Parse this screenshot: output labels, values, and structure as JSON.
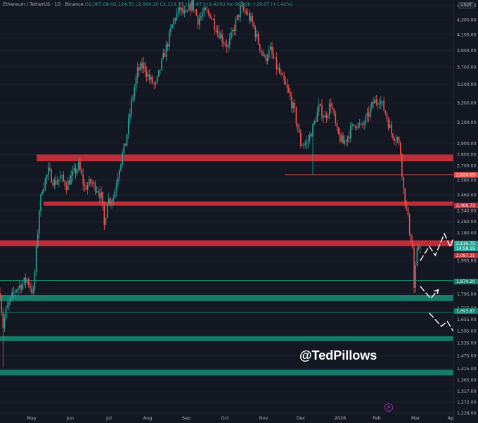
{
  "header": {
    "symbol": "Ethereum / TetherUS · 1D · Binance",
    "ohlc": "O2,087.08  H2,124.55  L2,064.10  C2,116.75  +29.67 (+1.42%)  Vol 99.82K  +29.67 (+1.42%)"
  },
  "currency_label": "USDT",
  "watermark": "@TedPillows",
  "colors": {
    "background": "#131722",
    "up": "#26a69a",
    "down": "#ef5350",
    "resistance_zone": "#c62f3a",
    "support_zone": "#15816f",
    "arrow": "#ffffff"
  },
  "chart_data": {
    "type": "candlestick",
    "title": "Ethereum / TetherUS · 1D · Binance",
    "y_scale": "log",
    "ylim": [
      1228,
      4500
    ],
    "x_labels": [
      "May",
      "Jun",
      "Jul",
      "Aug",
      "Sep",
      "Oct",
      "Nov",
      "Dec",
      "2026",
      "Feb",
      "Mar",
      "Ap"
    ],
    "y_ticks": [
      4500,
      4300,
      4100,
      3900,
      3700,
      3500,
      3300,
      3100,
      2900,
      2800,
      2700,
      2580,
      2460,
      2340,
      2260,
      2180,
      1995,
      1875,
      1795,
      1715,
      1655,
      1595,
      1535,
      1475,
      1415,
      1365,
      1317,
      1272,
      1228
    ],
    "y_tick_labels": [
      "4,500.00",
      "4,300.00",
      "4,100.00",
      "3,900.00",
      "3,700.00",
      "3,500.00",
      "3,300.00",
      "3,100.00",
      "2,900.00",
      "2,800.00",
      "2,700.00",
      "2,580.00",
      "2,460.00",
      "2,340.00",
      "2,260.00",
      "2,180.00",
      "1,995.00",
      "1,875.00",
      "1,795.00",
      "1,715.00",
      "1,655.00",
      "1,595.00",
      "1,535.00",
      "1,475.00",
      "1,415.00",
      "1,365.00",
      "1,317.00",
      "1,272.00",
      "1,228.00"
    ],
    "price_path": [
      [
        0,
        1800
      ],
      [
        2,
        1620
      ],
      [
        4,
        1700
      ],
      [
        7,
        1760
      ],
      [
        10,
        1820
      ],
      [
        14,
        1850
      ],
      [
        18,
        1880
      ],
      [
        22,
        1800
      ],
      [
        26,
        2350
      ],
      [
        28,
        2520
      ],
      [
        32,
        2650
      ],
      [
        36,
        2560
      ],
      [
        40,
        2600
      ],
      [
        44,
        2540
      ],
      [
        48,
        2620
      ],
      [
        52,
        2700
      ],
      [
        56,
        2520
      ],
      [
        60,
        2560
      ],
      [
        64,
        2520
      ],
      [
        67,
        2450
      ],
      [
        69,
        2230
      ],
      [
        71,
        2420
      ],
      [
        75,
        2440
      ],
      [
        79,
        2700
      ],
      [
        83,
        2900
      ],
      [
        87,
        3300
      ],
      [
        91,
        3650
      ],
      [
        95,
        3720
      ],
      [
        99,
        3560
      ],
      [
        103,
        3480
      ],
      [
        107,
        3750
      ],
      [
        111,
        4000
      ],
      [
        115,
        4300
      ],
      [
        119,
        4450
      ],
      [
        123,
        4350
      ],
      [
        127,
        4550
      ],
      [
        131,
        4300
      ],
      [
        135,
        4400
      ],
      [
        139,
        4380
      ],
      [
        143,
        4200
      ],
      [
        147,
        4050
      ],
      [
        151,
        3950
      ],
      [
        155,
        4200
      ],
      [
        159,
        4450
      ],
      [
        163,
        4400
      ],
      [
        167,
        4250
      ],
      [
        171,
        4000
      ],
      [
        175,
        3800
      ],
      [
        179,
        3900
      ],
      [
        183,
        3700
      ],
      [
        187,
        3550
      ],
      [
        191,
        3400
      ],
      [
        195,
        3200
      ],
      [
        199,
        2900
      ],
      [
        203,
        2900
      ],
      [
        207,
        3050
      ],
      [
        211,
        3250
      ],
      [
        215,
        3150
      ],
      [
        219,
        3300
      ],
      [
        223,
        3000
      ],
      [
        227,
        2900
      ],
      [
        231,
        3000
      ],
      [
        235,
        3100
      ],
      [
        239,
        3050
      ],
      [
        243,
        3150
      ],
      [
        247,
        3300
      ],
      [
        251,
        3350
      ],
      [
        255,
        3200
      ],
      [
        259,
        3000
      ],
      [
        263,
        2950
      ],
      [
        265,
        2820
      ],
      [
        267,
        2500
      ],
      [
        269,
        2350
      ],
      [
        271,
        2200
      ],
      [
        273,
        2080
      ],
      [
        274,
        1830
      ],
      [
        276,
        2050
      ],
      [
        278,
        2117
      ]
    ],
    "wicks": [
      {
        "day": 2,
        "low": 1420
      },
      {
        "day": 69,
        "low": 2200
      },
      {
        "day": 207,
        "low": 2620
      },
      {
        "day": 274,
        "low": 1800
      }
    ],
    "horizontal_lines": [
      {
        "price": 2624,
        "label": "2,624.03",
        "color": "#ef5350"
      },
      {
        "price": 1874.2,
        "label": "1,874.20",
        "color": "#15816f"
      },
      {
        "price": 1693.87,
        "label": "1,693.87",
        "color": "#15816f"
      }
    ],
    "zones": [
      {
        "type": "resistance",
        "high": 2800,
        "low": 2740
      },
      {
        "type": "resistance",
        "high": 2410,
        "low": 2385
      },
      {
        "type": "resistance",
        "high": 2130,
        "low": 2090
      },
      {
        "type": "support",
        "high": 1790,
        "low": 1755
      },
      {
        "type": "support",
        "high": 1570,
        "low": 1545
      },
      {
        "type": "support",
        "high": 1410,
        "low": 1385
      }
    ],
    "price_labels": [
      {
        "text": "2,400.73",
        "color": "#c62f3a"
      },
      {
        "text": "2,116.75",
        "color": "#26a69a"
      },
      {
        "text": "14:58:35",
        "color": "#26a69a"
      },
      {
        "text": "2,097.31",
        "color": "#c62f3a"
      },
      {
        "text": "1,874.20",
        "color": "#15816f"
      },
      {
        "text": "1,693.87",
        "color": "#15816f"
      }
    ],
    "projection_arrows": [
      [
        [
          278,
          1995
        ],
        [
          284,
          2090
        ],
        [
          288,
          2030
        ],
        [
          294,
          2175
        ],
        [
          298,
          2085
        ],
        [
          306,
          2340
        ],
        [
          314,
          2350
        ]
      ],
      [
        [
          278,
          1840
        ],
        [
          285,
          1770
        ],
        [
          290,
          1820
        ]
      ],
      [
        [
          284,
          1690
        ],
        [
          292,
          1620
        ],
        [
          296,
          1645
        ],
        [
          303,
          1555
        ],
        [
          307,
          1595
        ]
      ]
    ]
  }
}
